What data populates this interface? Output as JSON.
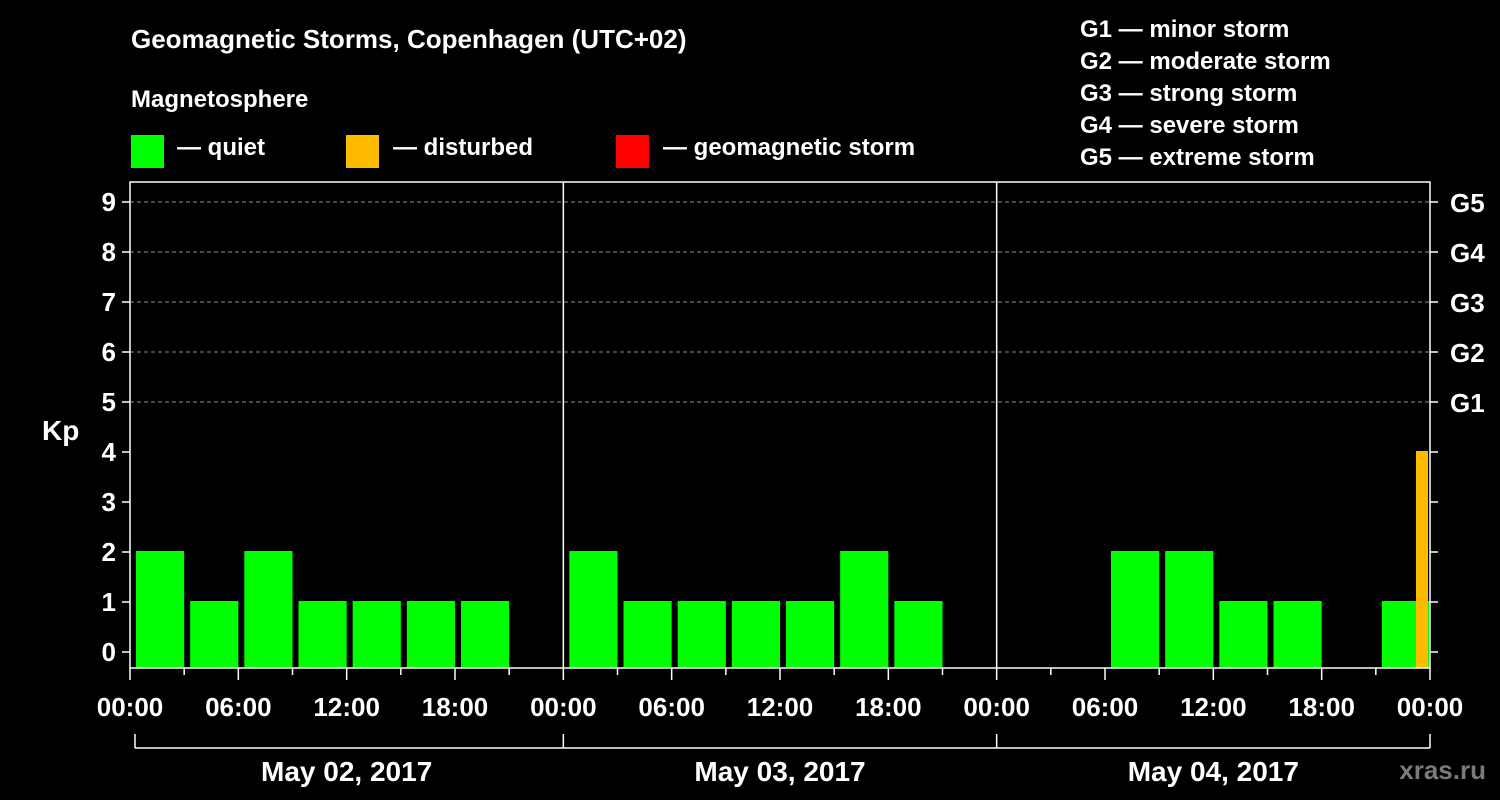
{
  "title": "Geomagnetic Storms, Copenhagen (UTC+02)",
  "subtitle": "Magnetosphere",
  "legend": [
    {
      "label": "— quiet",
      "color": "#00ff00"
    },
    {
      "label": "— disturbed",
      "color": "#ffbb00"
    },
    {
      "label": "— geomagnetic storm",
      "color": "#ff0000"
    }
  ],
  "g_scale": [
    "G1 — minor storm",
    "G2 — moderate storm",
    "G3 — strong storm",
    "G4 — severe storm",
    "G5 — extreme storm"
  ],
  "watermark": "xras.ru",
  "chart_data": {
    "type": "bar",
    "ylabel": "Kp",
    "ylim": [
      0,
      9
    ],
    "y_ticks": [
      "0",
      "1",
      "2",
      "3",
      "4",
      "5",
      "6",
      "7",
      "8",
      "9"
    ],
    "right_axis_labels": [
      {
        "kp": 5,
        "label": "G1"
      },
      {
        "kp": 6,
        "label": "G2"
      },
      {
        "kp": 7,
        "label": "G3"
      },
      {
        "kp": 8,
        "label": "G4"
      },
      {
        "kp": 9,
        "label": "G5"
      }
    ],
    "x_tick_labels": [
      "00:00",
      "06:00",
      "12:00",
      "18:00",
      "00:00",
      "06:00",
      "12:00",
      "18:00",
      "00:00",
      "06:00",
      "12:00",
      "18:00",
      "00:00"
    ],
    "days": [
      "May 02, 2017",
      "May 03, 2017",
      "May 04, 2017"
    ],
    "bars": [
      {
        "day": 0,
        "start_hour": 0,
        "end_hour": 3,
        "kp": 2,
        "color": "#00ff00"
      },
      {
        "day": 0,
        "start_hour": 3,
        "end_hour": 6,
        "kp": 1,
        "color": "#00ff00"
      },
      {
        "day": 0,
        "start_hour": 6,
        "end_hour": 9,
        "kp": 2,
        "color": "#00ff00"
      },
      {
        "day": 0,
        "start_hour": 9,
        "end_hour": 12,
        "kp": 1,
        "color": "#00ff00"
      },
      {
        "day": 0,
        "start_hour": 12,
        "end_hour": 15,
        "kp": 1,
        "color": "#00ff00"
      },
      {
        "day": 0,
        "start_hour": 15,
        "end_hour": 18,
        "kp": 1,
        "color": "#00ff00"
      },
      {
        "day": 0,
        "start_hour": 18,
        "end_hour": 21,
        "kp": 1,
        "color": "#00ff00"
      },
      {
        "day": 1,
        "start_hour": 0,
        "end_hour": 3,
        "kp": 2,
        "color": "#00ff00"
      },
      {
        "day": 1,
        "start_hour": 3,
        "end_hour": 6,
        "kp": 1,
        "color": "#00ff00"
      },
      {
        "day": 1,
        "start_hour": 6,
        "end_hour": 9,
        "kp": 1,
        "color": "#00ff00"
      },
      {
        "day": 1,
        "start_hour": 9,
        "end_hour": 12,
        "kp": 1,
        "color": "#00ff00"
      },
      {
        "day": 1,
        "start_hour": 12,
        "end_hour": 15,
        "kp": 1,
        "color": "#00ff00"
      },
      {
        "day": 1,
        "start_hour": 15,
        "end_hour": 18,
        "kp": 2,
        "color": "#00ff00"
      },
      {
        "day": 1,
        "start_hour": 18,
        "end_hour": 21,
        "kp": 1,
        "color": "#00ff00"
      },
      {
        "day": 2,
        "start_hour": 6,
        "end_hour": 9,
        "kp": 2,
        "color": "#00ff00"
      },
      {
        "day": 2,
        "start_hour": 9,
        "end_hour": 12,
        "kp": 2,
        "color": "#00ff00"
      },
      {
        "day": 2,
        "start_hour": 12,
        "end_hour": 15,
        "kp": 1,
        "color": "#00ff00"
      },
      {
        "day": 2,
        "start_hour": 15,
        "end_hour": 18,
        "kp": 1,
        "color": "#00ff00"
      },
      {
        "day": 2,
        "start_hour": 21,
        "end_hour": 24,
        "kp": 1,
        "color": "#00ff00"
      },
      {
        "day": 2,
        "start_hour": 24,
        "end_hour": 24,
        "kp": 4,
        "color": "#ffbb00"
      }
    ]
  }
}
